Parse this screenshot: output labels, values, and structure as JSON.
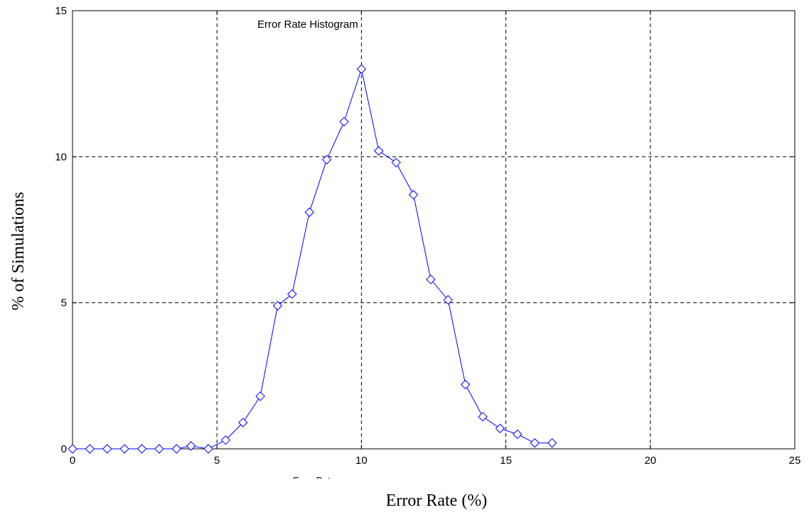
{
  "chart_data": {
    "type": "line",
    "title": "Error Rate Histogram",
    "xlabel": "Error Rate (%)",
    "ylabel": "% of Simulations",
    "stray_label": "Error Rate",
    "xlim": [
      0,
      25
    ],
    "ylim": [
      0,
      15
    ],
    "xticks": [
      0,
      5,
      10,
      15,
      20,
      25
    ],
    "yticks": [
      0,
      5,
      10,
      15
    ],
    "grid": true,
    "marker": "diamond",
    "line_color": "#0000ff",
    "x": [
      0,
      0.6,
      1.2,
      1.8,
      2.4,
      3.0,
      3.6,
      4.1,
      4.7,
      5.3,
      5.9,
      6.5,
      7.1,
      7.6,
      8.2,
      8.8,
      9.4,
      10.0,
      10.6,
      11.2,
      11.8,
      12.4,
      13.0,
      13.6,
      14.2,
      14.8,
      15.4,
      16.0,
      16.6
    ],
    "y": [
      0,
      0,
      0,
      0,
      0,
      0,
      0,
      0.1,
      0,
      0.3,
      0.9,
      1.8,
      4.9,
      5.3,
      8.1,
      9.9,
      11.2,
      13.0,
      10.2,
      9.8,
      8.7,
      5.8,
      5.1,
      2.2,
      1.1,
      0.7,
      0.5,
      0.2,
      0.2
    ]
  }
}
